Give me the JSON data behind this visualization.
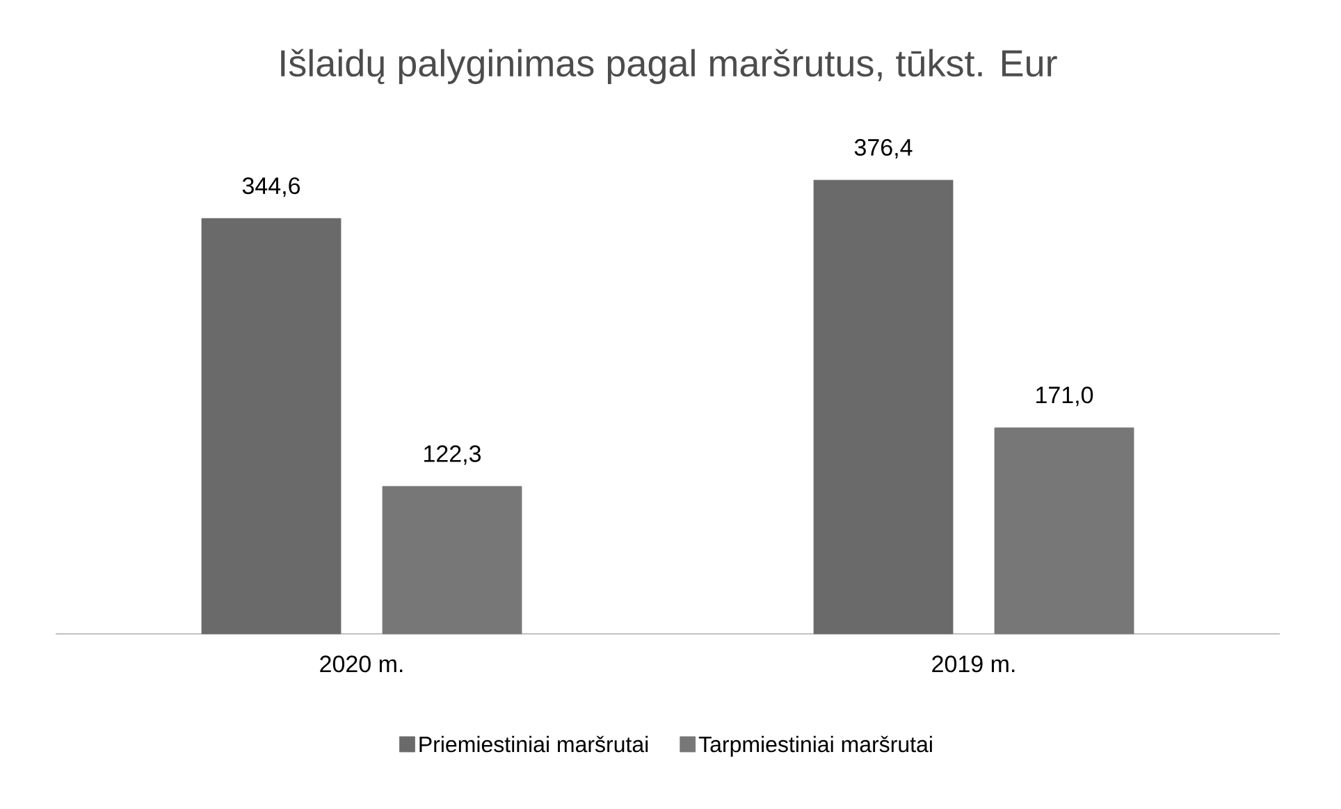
{
  "chart_data": {
    "type": "bar",
    "title": "Išlaidų palyginimas pagal maršrutus, tūkst. Eur",
    "categories": [
      "2020 m.",
      "2019 m."
    ],
    "series": [
      {
        "name": "Priemiestiniai maršrutai",
        "color": "#6a6a6a",
        "values": [
          344.6,
          376.4
        ],
        "value_labels": [
          "344,6",
          "376,4"
        ]
      },
      {
        "name": "Tarpmiestiniai maršrutai",
        "color": "#777777",
        "values": [
          122.3,
          171.0
        ],
        "value_labels": [
          "122,3",
          "171,0"
        ]
      }
    ],
    "legend": "bottom"
  }
}
